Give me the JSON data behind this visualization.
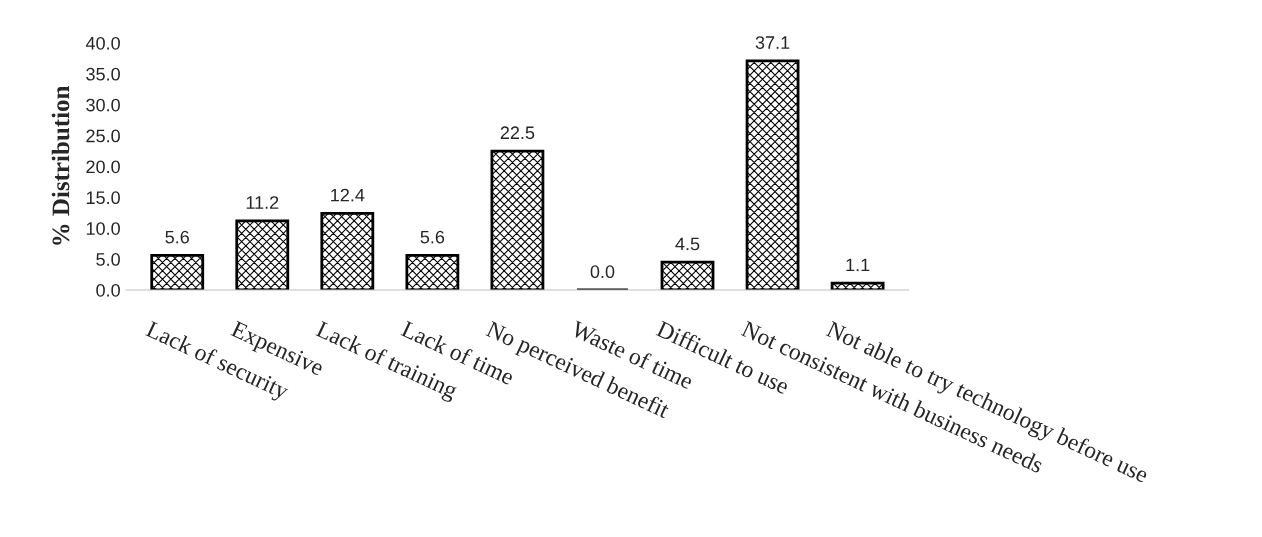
{
  "chart_data": {
    "type": "bar",
    "ylabel": "% Distribution",
    "categories": [
      "Lack of security",
      "Expensive",
      "Lack of training",
      "Lack of time",
      "No perceived benefit",
      "Waste of time",
      "Difficult to use",
      "Not consistent with business needs",
      "Not able to try technology before use"
    ],
    "values": [
      5.6,
      11.2,
      12.4,
      5.6,
      22.5,
      0.0,
      4.5,
      37.1,
      1.1
    ],
    "value_labels": [
      "5.6",
      "11.2",
      "12.4",
      "5.6",
      "22.5",
      "0.0",
      "4.5",
      "37.1",
      "1.1"
    ],
    "color": "#000000",
    "ylim": [
      0,
      40
    ],
    "yticks": [
      {
        "value": 0,
        "label": "0.0"
      },
      {
        "value": 5,
        "label": "5.0"
      },
      {
        "value": 10,
        "label": "10.0"
      },
      {
        "value": 15,
        "label": "15.0"
      },
      {
        "value": 20,
        "label": "20.0"
      },
      {
        "value": 25,
        "label": "25.0"
      },
      {
        "value": 30,
        "label": "30.0"
      },
      {
        "value": 35,
        "label": "35.0"
      },
      {
        "value": 40,
        "label": "40.0"
      }
    ],
    "grid": false
  }
}
